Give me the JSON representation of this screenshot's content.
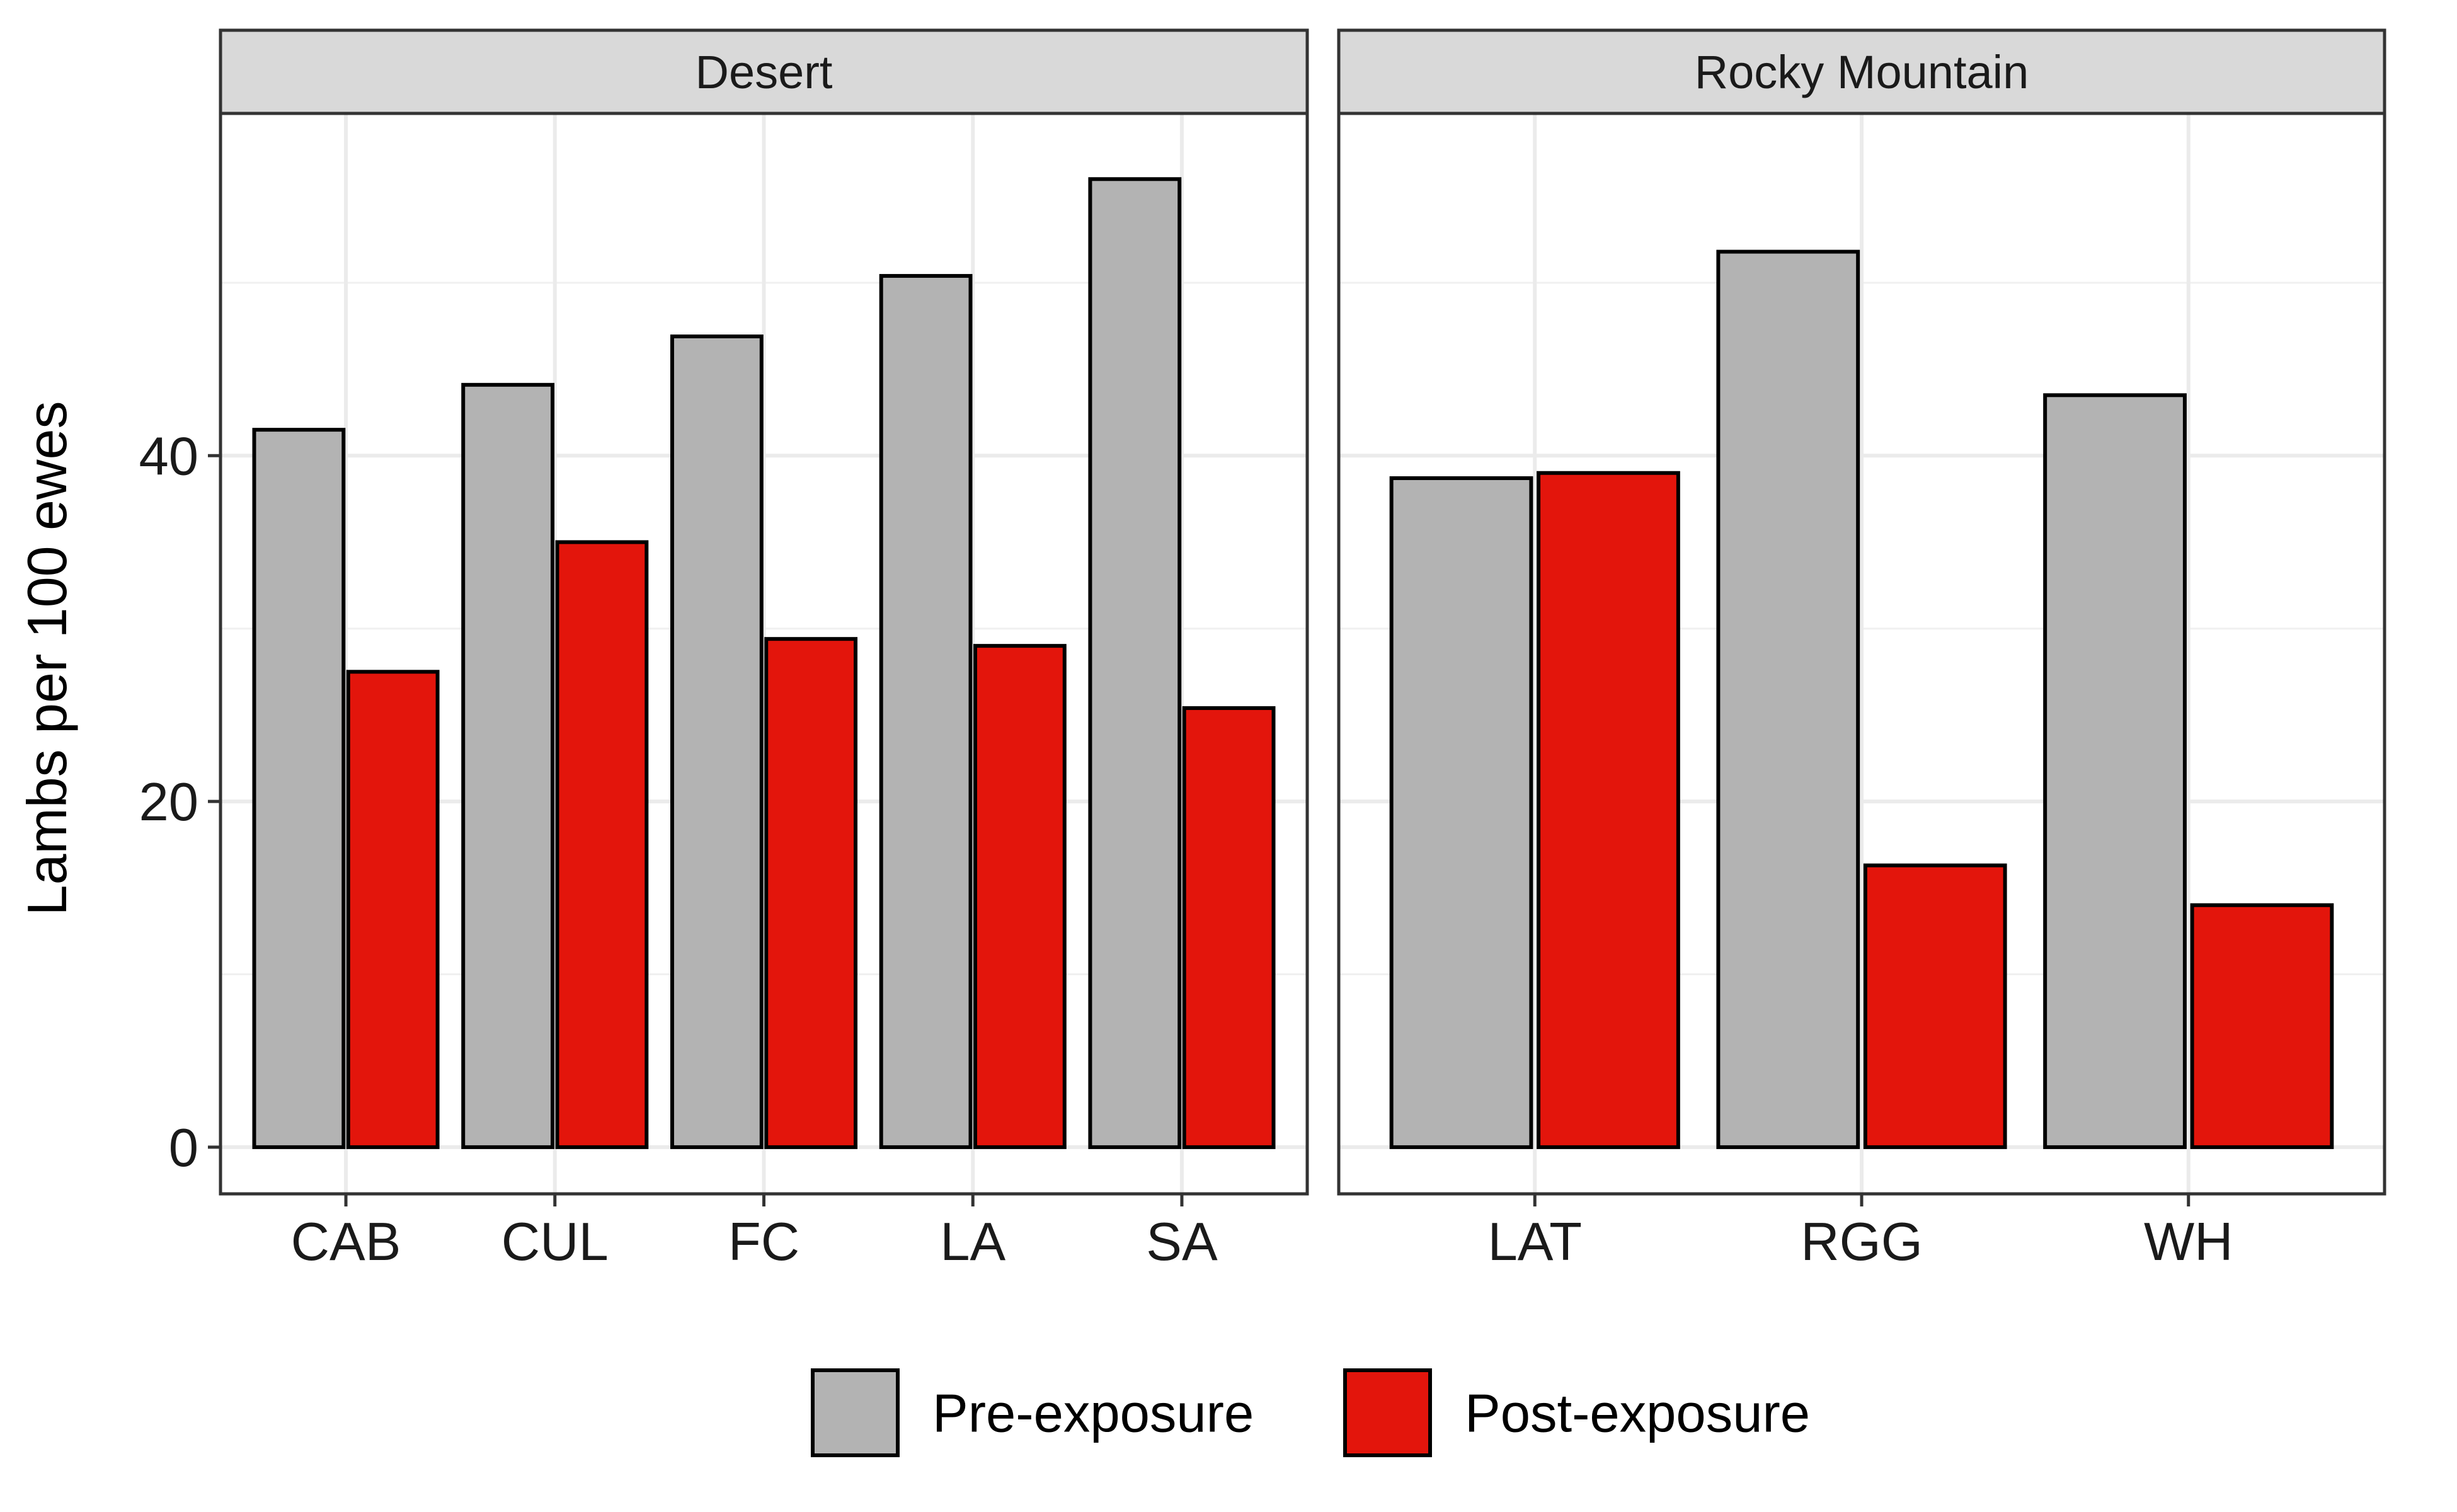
{
  "chart_data": {
    "type": "bar",
    "ylabel": "Lambs per 100 ewes",
    "ylim": [
      -2.7,
      59.8
    ],
    "yticks": [
      0,
      20,
      40
    ],
    "grid": true,
    "legend_position": "bottom",
    "colors": {
      "pre": "#b3b3b3",
      "post": "#e3150c",
      "strip": "#d9d9d9"
    },
    "legend": [
      {
        "key": "pre",
        "label": "Pre-exposure"
      },
      {
        "key": "post",
        "label": "Post-exposure"
      }
    ],
    "series": [
      {
        "key": "pre",
        "name": "Pre-exposure"
      },
      {
        "key": "post",
        "name": "Post-exposure"
      }
    ],
    "panels": [
      {
        "title": "Desert",
        "categories": [
          "CAB",
          "CUL",
          "FC",
          "LA",
          "SA"
        ],
        "pre": [
          41.5,
          44.1,
          46.9,
          50.4,
          56.0
        ],
        "post": [
          27.5,
          35.0,
          29.4,
          29.0,
          25.4
        ]
      },
      {
        "title": "Rocky Mountain",
        "categories": [
          "LAT",
          "RGG",
          "WH"
        ],
        "pre": [
          38.7,
          51.8,
          43.5
        ],
        "post": [
          39.0,
          16.3,
          14.0
        ]
      }
    ]
  }
}
